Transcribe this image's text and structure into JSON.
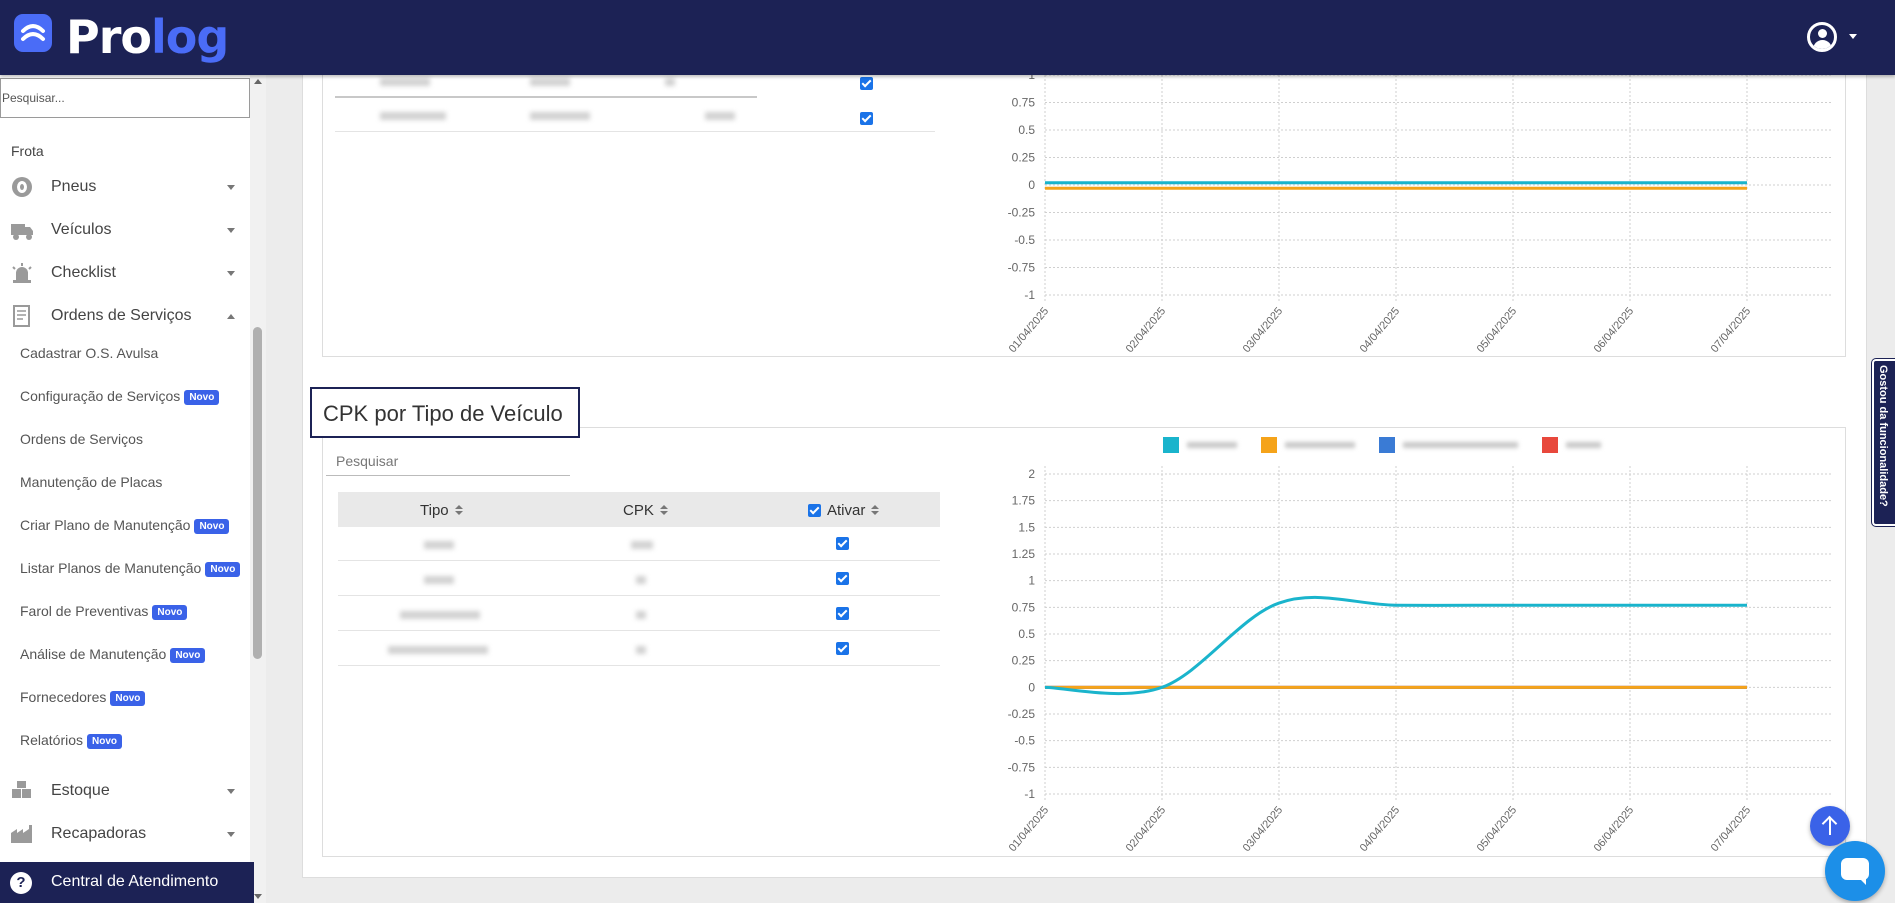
{
  "header": {
    "logo_part1": "Pro",
    "logo_part2": "log",
    "brand_color": "#1c2255",
    "accent_color": "#4a6cf7",
    "user_icon": "user-circle-icon"
  },
  "sidebar": {
    "search_placeholder": "Pesquisar...",
    "section_label": "Frota",
    "items": [
      {
        "label": "Pneus",
        "icon": "tire-icon",
        "expanded": false
      },
      {
        "label": "Veículos",
        "icon": "truck-icon",
        "expanded": false
      },
      {
        "label": "Checklist",
        "icon": "alarm-icon",
        "expanded": false
      },
      {
        "label": "Ordens de Serviços",
        "icon": "document-icon",
        "expanded": true
      },
      {
        "label": "Estoque",
        "icon": "boxes-icon",
        "expanded": false
      },
      {
        "label": "Recapadoras",
        "icon": "factory-icon",
        "expanded": false
      }
    ],
    "subitems": [
      {
        "label": "Cadastrar O.S. Avulsa",
        "badge": ""
      },
      {
        "label": "Configuração de Serviços",
        "badge": "Novo"
      },
      {
        "label": "Ordens de Serviços",
        "badge": ""
      },
      {
        "label": "Manutenção de Placas",
        "badge": ""
      },
      {
        "label": "Criar Plano de Manutenção",
        "badge": "Novo"
      },
      {
        "label": "Listar Planos de Manutenção",
        "badge": "Novo"
      },
      {
        "label": "Farol de Preventivas",
        "badge": "Novo"
      },
      {
        "label": "Análise de Manutenção",
        "badge": "Novo"
      },
      {
        "label": "Fornecedores",
        "badge": "Novo"
      },
      {
        "label": "Relatórios",
        "badge": "Novo"
      }
    ],
    "help_label": "Central de Atendimento"
  },
  "top_panel": {
    "rows_active": [
      true,
      true
    ],
    "chart_data": {
      "type": "line",
      "x": [
        "01/04/2025",
        "02/04/2025",
        "03/04/2025",
        "04/04/2025",
        "05/04/2025",
        "06/04/2025",
        "07/04/2025"
      ],
      "y_ticks": [
        "1",
        "0.75",
        "0.5",
        "0.25",
        "0",
        "-0.25",
        "-0.5",
        "-0.75",
        "-1"
      ],
      "ylim": [
        -1,
        1
      ],
      "series": [
        {
          "color": "#1ab4cc",
          "values": [
            0.02,
            0.02,
            0.02,
            0.02,
            0.02,
            0.02,
            0.02
          ]
        },
        {
          "color": "#f5a31a",
          "values": [
            -0.03,
            -0.03,
            -0.03,
            -0.03,
            -0.03,
            -0.03,
            -0.03
          ]
        }
      ],
      "grid": true
    }
  },
  "cpk_panel": {
    "title": "CPK por Tipo de Veículo",
    "search_placeholder": "Pesquisar",
    "columns": {
      "tipo": "Tipo",
      "cpk": "CPK",
      "ativar": "Ativar"
    },
    "rows_active": [
      true,
      true,
      true,
      true
    ],
    "chart_data": {
      "type": "line",
      "x": [
        "01/04/2025",
        "02/04/2025",
        "03/04/2025",
        "04/04/2025",
        "05/04/2025",
        "06/04/2025",
        "07/04/2025"
      ],
      "y_ticks": [
        "2",
        "1.75",
        "1.5",
        "1.25",
        "1",
        "0.75",
        "0.5",
        "0.25",
        "0",
        "-0.25",
        "-0.5",
        "-0.75",
        "-1"
      ],
      "ylim": [
        -1,
        2
      ],
      "legend_position": "top",
      "series": [
        {
          "color": "#1ab4cc",
          "values": [
            0,
            0,
            0.79,
            0.77,
            0.77,
            0.77,
            0.77
          ]
        },
        {
          "color": "#f5a31a",
          "values": [
            0,
            0,
            0,
            0,
            0,
            0,
            0
          ]
        },
        {
          "color": "#3a7bd5",
          "values": [
            0,
            0,
            0,
            0,
            0,
            0,
            0
          ]
        },
        {
          "color": "#e8483c",
          "values": [
            0,
            0,
            0,
            0,
            0,
            0,
            0
          ]
        }
      ],
      "grid": true
    }
  },
  "feedback_tab": "Gostou da funcionalidade?"
}
